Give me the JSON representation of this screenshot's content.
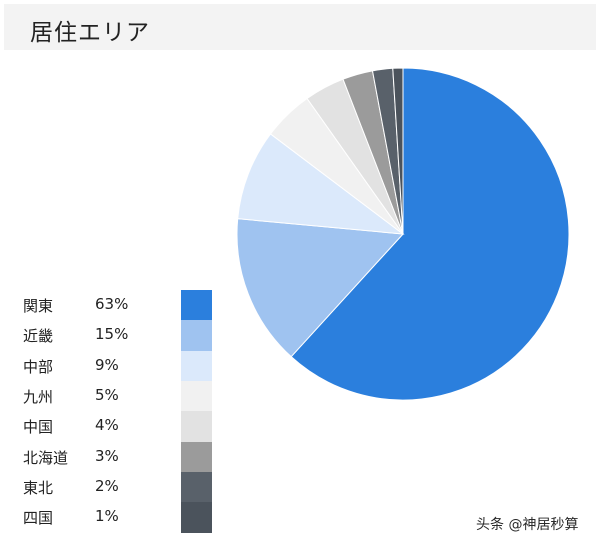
{
  "header": {
    "title": "居住エリア"
  },
  "chart_data": {
    "type": "pie",
    "title": "居住エリア",
    "slices": [
      {
        "label": "関東",
        "value": 63,
        "display": "63%",
        "color": "#2b7fdd"
      },
      {
        "label": "近畿",
        "value": 15,
        "display": "15%",
        "color": "#9fc3f0"
      },
      {
        "label": "中部",
        "value": 9,
        "display": "9%",
        "color": "#dbe9fb"
      },
      {
        "label": "九州",
        "value": 5,
        "display": "5%",
        "color": "#f1f1f1"
      },
      {
        "label": "中国",
        "value": 4,
        "display": "4%",
        "color": "#e2e2e2"
      },
      {
        "label": "北海道",
        "value": 3,
        "display": "3%",
        "color": "#9b9b9b"
      },
      {
        "label": "東北",
        "value": 2,
        "display": "2%",
        "color": "#59616a"
      },
      {
        "label": "四国",
        "value": 1,
        "display": "1%",
        "color": "#4b535c"
      }
    ],
    "legend_placement": "bottom-left"
  },
  "watermark": {
    "text": "头条 @神居秒算"
  }
}
